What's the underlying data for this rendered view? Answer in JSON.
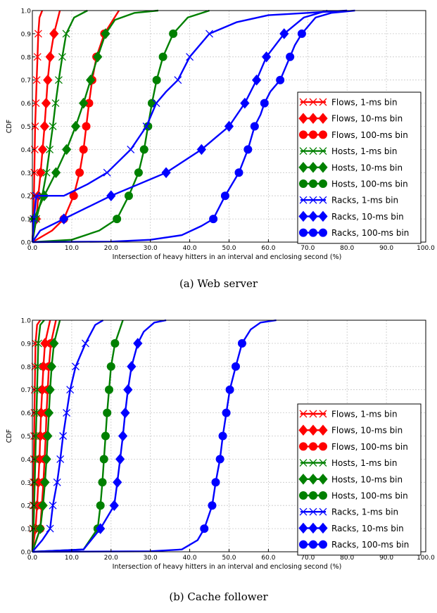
{
  "chart_data": [
    {
      "type": "line",
      "title": "",
      "caption": "(a) Web server",
      "xlabel": "Intersection of heavy hitters in an interval and enclosing second (%)",
      "ylabel": "CDF",
      "xlim": [
        0,
        100
      ],
      "ylim": [
        0,
        1
      ],
      "xticks": [
        "0.0",
        "10.0",
        "20.0",
        "30.0",
        "40.0",
        "50.0",
        "60.0",
        "70.0",
        "80.0",
        "90.0",
        "100.0"
      ],
      "yticks": [
        "0.0",
        "0.1",
        "0.2",
        "0.3",
        "0.4",
        "0.5",
        "0.6",
        "0.7",
        "0.8",
        "0.9",
        "1.0"
      ],
      "grid": true,
      "legend_position": "right",
      "series": [
        {
          "name": "Flows, 1-ms bin",
          "color": "#ff0000",
          "marker": "x",
          "x": [
            0,
            0.3,
            0.5,
            0.7,
            0.9,
            1.1,
            1.3,
            1.5,
            1.8,
            2.5
          ],
          "y": [
            0,
            0.1,
            0.3,
            0.5,
            0.6,
            0.7,
            0.8,
            0.9,
            0.97,
            1.0
          ]
        },
        {
          "name": "Flows, 10-ms bin",
          "color": "#ff0000",
          "marker": "diamond",
          "x": [
            0,
            1,
            1.5,
            2.1,
            2.6,
            3.1,
            3.5,
            3.9,
            4.5,
            5.5,
            7
          ],
          "y": [
            0,
            0.1,
            0.2,
            0.3,
            0.4,
            0.5,
            0.6,
            0.7,
            0.8,
            0.9,
            1.0
          ]
        },
        {
          "name": "Flows, 100-ms bin",
          "color": "#ff0000",
          "marker": "circle",
          "x": [
            0,
            5,
            8,
            10.5,
            12,
            13,
            13.7,
            14.4,
            15.2,
            16.3,
            18.3,
            22
          ],
          "y": [
            0,
            0.05,
            0.1,
            0.2,
            0.3,
            0.4,
            0.5,
            0.6,
            0.7,
            0.8,
            0.9,
            1.0
          ]
        },
        {
          "name": "Hosts, 1-ms bin",
          "color": "#008000",
          "marker": "x",
          "x": [
            0,
            1,
            2.5,
            3.6,
            4.4,
            5.2,
            5.9,
            6.7,
            7.6,
            8.6,
            10.6,
            14
          ],
          "y": [
            0,
            0.1,
            0.2,
            0.3,
            0.4,
            0.5,
            0.6,
            0.7,
            0.8,
            0.9,
            0.97,
            1.0
          ]
        },
        {
          "name": "Hosts, 10-ms bin",
          "color": "#008000",
          "marker": "diamond",
          "x": [
            0,
            0.4,
            3,
            6,
            8.7,
            11,
            13,
            14.8,
            16.6,
            18.6,
            21,
            26,
            32
          ],
          "y": [
            0,
            0.1,
            0.2,
            0.3,
            0.4,
            0.5,
            0.6,
            0.7,
            0.8,
            0.9,
            0.96,
            0.99,
            1.0
          ]
        },
        {
          "name": "Hosts, 100-ms bin",
          "color": "#008000",
          "marker": "circle",
          "x": [
            0,
            10,
            17,
            21.5,
            24.5,
            27,
            28.4,
            29.4,
            30.4,
            31.6,
            33.2,
            35.8,
            39.5,
            45
          ],
          "y": [
            0,
            0.01,
            0.05,
            0.1,
            0.2,
            0.3,
            0.4,
            0.5,
            0.6,
            0.7,
            0.8,
            0.9,
            0.97,
            1.0
          ]
        },
        {
          "name": "Racks, 1-ms bin",
          "color": "#0000ff",
          "marker": "x",
          "x": [
            0,
            0.4,
            1,
            5,
            8,
            14,
            19,
            25,
            29,
            31.5,
            34,
            37,
            40,
            45,
            52,
            60,
            70,
            80
          ],
          "y": [
            0,
            0.1,
            0.2,
            0.2,
            0.2,
            0.25,
            0.3,
            0.4,
            0.5,
            0.6,
            0.65,
            0.7,
            0.8,
            0.9,
            0.95,
            0.98,
            0.99,
            1.0
          ]
        },
        {
          "name": "Racks, 10-ms bin",
          "color": "#0000ff",
          "marker": "diamond",
          "x": [
            0,
            2,
            8,
            14,
            20,
            27,
            34,
            38.5,
            43,
            46.5,
            50,
            54,
            57,
            59.5,
            64,
            69,
            75
          ],
          "y": [
            0,
            0.05,
            0.1,
            0.15,
            0.2,
            0.25,
            0.3,
            0.35,
            0.4,
            0.45,
            0.5,
            0.6,
            0.7,
            0.8,
            0.9,
            0.97,
            1.0
          ]
        },
        {
          "name": "Racks, 100-ms bin",
          "color": "#0000ff",
          "marker": "circle",
          "x": [
            0,
            20,
            30,
            38,
            43,
            46,
            49,
            52.5,
            54.8,
            56.5,
            58,
            59,
            60.5,
            63,
            65.5,
            66.7,
            68.5,
            72,
            76,
            82
          ],
          "y": [
            0,
            0.002,
            0.01,
            0.03,
            0.07,
            0.1,
            0.2,
            0.3,
            0.4,
            0.5,
            0.55,
            0.6,
            0.65,
            0.7,
            0.8,
            0.85,
            0.9,
            0.97,
            0.99,
            1.0
          ]
        }
      ]
    },
    {
      "type": "line",
      "title": "",
      "caption": "(b) Cache follower",
      "xlabel": "Intersection of heavy hitters in an interval and enclosing second (%)",
      "ylabel": "CDF",
      "xlim": [
        0,
        100
      ],
      "ylim": [
        0,
        1
      ],
      "xticks": [
        "0.0",
        "10.0",
        "20.0",
        "30.0",
        "40.0",
        "50.0",
        "60.0",
        "70.0",
        "80.0",
        "90.0",
        "100.0"
      ],
      "yticks": [
        "0.0",
        "0.1",
        "0.2",
        "0.3",
        "0.4",
        "0.5",
        "0.6",
        "0.7",
        "0.8",
        "0.9",
        "1.0"
      ],
      "grid": true,
      "legend_position": "right",
      "series": [
        {
          "name": "Flows, 1-ms bin",
          "color": "#ff0000",
          "marker": "x",
          "x": [
            0,
            0.15,
            0.3,
            0.45,
            0.6,
            0.8,
            1.2,
            2
          ],
          "y": [
            0,
            0.1,
            0.3,
            0.5,
            0.7,
            0.9,
            0.98,
            1.0
          ]
        },
        {
          "name": "Flows, 10-ms bin",
          "color": "#ff0000",
          "marker": "diamond",
          "x": [
            0,
            0.8,
            1.2,
            1.5,
            1.8,
            2.0,
            2.2,
            2.5,
            2.8,
            3.2,
            4.5
          ],
          "y": [
            0,
            0.1,
            0.2,
            0.3,
            0.4,
            0.5,
            0.6,
            0.7,
            0.8,
            0.9,
            1.0
          ]
        },
        {
          "name": "Flows, 100-ms bin",
          "color": "#ff0000",
          "marker": "circle",
          "x": [
            0,
            2,
            2.4,
            2.8,
            3.1,
            3.4,
            3.6,
            3.9,
            4.2,
            4.7,
            6
          ],
          "y": [
            0,
            0.1,
            0.2,
            0.3,
            0.4,
            0.5,
            0.6,
            0.7,
            0.8,
            0.9,
            1.0
          ]
        },
        {
          "name": "Hosts, 1-ms bin",
          "color": "#008000",
          "marker": "x",
          "x": [
            0,
            0.3,
            0.6,
            0.9,
            1.2,
            1.5,
            2,
            3
          ],
          "y": [
            0,
            0.1,
            0.3,
            0.5,
            0.7,
            0.9,
            0.98,
            1.0
          ]
        },
        {
          "name": "Hosts, 10-ms bin",
          "color": "#008000",
          "marker": "diamond",
          "x": [
            0,
            2,
            2.7,
            3.2,
            3.6,
            3.9,
            4.2,
            4.5,
            4.9,
            5.5,
            7
          ],
          "y": [
            0,
            0.1,
            0.2,
            0.3,
            0.4,
            0.5,
            0.6,
            0.7,
            0.8,
            0.9,
            1.0
          ]
        },
        {
          "name": "Hosts, 100-ms bin",
          "color": "#008000",
          "marker": "circle",
          "x": [
            0,
            13,
            16.6,
            17.3,
            17.8,
            18.2,
            18.6,
            19,
            19.5,
            20,
            21,
            23
          ],
          "y": [
            0,
            0.01,
            0.1,
            0.2,
            0.3,
            0.4,
            0.5,
            0.6,
            0.7,
            0.8,
            0.9,
            1.0
          ]
        },
        {
          "name": "Racks, 1-ms bin",
          "color": "#0000ff",
          "marker": "x",
          "x": [
            0,
            2.5,
            4.5,
            5.2,
            6.3,
            7.1,
            7.8,
            8.7,
            9.6,
            11,
            13.5,
            16,
            18
          ],
          "y": [
            0,
            0.05,
            0.1,
            0.2,
            0.3,
            0.4,
            0.5,
            0.6,
            0.7,
            0.8,
            0.9,
            0.98,
            1.0
          ]
        },
        {
          "name": "Racks, 10-ms bin",
          "color": "#0000ff",
          "marker": "diamond",
          "x": [
            0,
            13,
            17.3,
            20.8,
            21.6,
            22.3,
            23,
            23.6,
            24.3,
            25.2,
            26.8,
            28.3,
            31,
            34
          ],
          "y": [
            0,
            0.01,
            0.1,
            0.2,
            0.3,
            0.4,
            0.5,
            0.6,
            0.7,
            0.8,
            0.9,
            0.95,
            0.99,
            1.0
          ]
        },
        {
          "name": "Racks, 100-ms bin",
          "color": "#0000ff",
          "marker": "circle",
          "x": [
            0,
            30,
            38,
            42,
            43.7,
            45.7,
            46.6,
            47.7,
            48.4,
            49.3,
            50.2,
            51.7,
            53.3,
            55.5,
            58,
            62
          ],
          "y": [
            0,
            0.002,
            0.01,
            0.05,
            0.1,
            0.2,
            0.3,
            0.4,
            0.5,
            0.6,
            0.7,
            0.8,
            0.9,
            0.96,
            0.99,
            1.0
          ]
        }
      ]
    }
  ]
}
